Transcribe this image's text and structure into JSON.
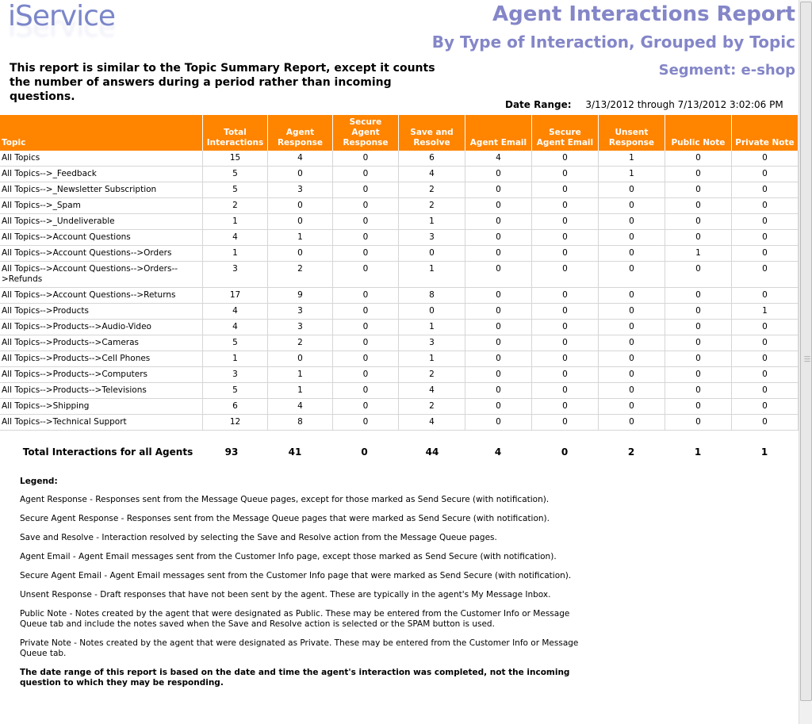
{
  "logo": {
    "text": "iService"
  },
  "header": {
    "title": "Agent Interactions Report",
    "subtitle": "By Type of Interaction, Grouped by Topic",
    "segment": "Segment: e-shop",
    "description": "This report is similar to the Topic Summary Report, except it counts the number of answers during a period rather than incoming questions."
  },
  "date_range": {
    "label": "Date Range:",
    "value": "3/13/2012 through 7/13/2012 3:02:06 PM"
  },
  "table": {
    "columns": [
      "Topic",
      "Total Interactions",
      "Agent Response",
      "Secure Agent Response",
      "Save and Resolve",
      "Agent Email",
      "Secure Agent Email",
      "Unsent Response",
      "Public Note",
      "Private Note"
    ],
    "rows": [
      [
        "All Topics",
        "15",
        "4",
        "0",
        "6",
        "4",
        "0",
        "1",
        "0",
        "0"
      ],
      [
        "All Topics-->_Feedback",
        "5",
        "0",
        "0",
        "4",
        "0",
        "0",
        "1",
        "0",
        "0"
      ],
      [
        "All Topics-->_Newsletter Subscription",
        "5",
        "3",
        "0",
        "2",
        "0",
        "0",
        "0",
        "0",
        "0"
      ],
      [
        "All Topics-->_Spam",
        "2",
        "0",
        "0",
        "2",
        "0",
        "0",
        "0",
        "0",
        "0"
      ],
      [
        "All Topics-->_Undeliverable",
        "1",
        "0",
        "0",
        "1",
        "0",
        "0",
        "0",
        "0",
        "0"
      ],
      [
        "All Topics-->Account Questions",
        "4",
        "1",
        "0",
        "3",
        "0",
        "0",
        "0",
        "0",
        "0"
      ],
      [
        "All Topics-->Account Questions-->Orders",
        "1",
        "0",
        "0",
        "0",
        "0",
        "0",
        "0",
        "1",
        "0"
      ],
      [
        "All Topics-->Account Questions-->Orders-->Refunds",
        "3",
        "2",
        "0",
        "1",
        "0",
        "0",
        "0",
        "0",
        "0"
      ],
      [
        "All Topics-->Account Questions-->Returns",
        "17",
        "9",
        "0",
        "8",
        "0",
        "0",
        "0",
        "0",
        "0"
      ],
      [
        "All Topics-->Products",
        "4",
        "3",
        "0",
        "0",
        "0",
        "0",
        "0",
        "0",
        "1"
      ],
      [
        "All Topics-->Products-->Audio-Video",
        "4",
        "3",
        "0",
        "1",
        "0",
        "0",
        "0",
        "0",
        "0"
      ],
      [
        "All Topics-->Products-->Cameras",
        "5",
        "2",
        "0",
        "3",
        "0",
        "0",
        "0",
        "0",
        "0"
      ],
      [
        "All Topics-->Products-->Cell Phones",
        "1",
        "0",
        "0",
        "1",
        "0",
        "0",
        "0",
        "0",
        "0"
      ],
      [
        "All Topics-->Products-->Computers",
        "3",
        "1",
        "0",
        "2",
        "0",
        "0",
        "0",
        "0",
        "0"
      ],
      [
        "All Topics-->Products-->Televisions",
        "5",
        "1",
        "0",
        "4",
        "0",
        "0",
        "0",
        "0",
        "0"
      ],
      [
        "All Topics-->Shipping",
        "6",
        "4",
        "0",
        "2",
        "0",
        "0",
        "0",
        "0",
        "0"
      ],
      [
        "All Topics-->Technical Support",
        "12",
        "8",
        "0",
        "4",
        "0",
        "0",
        "0",
        "0",
        "0"
      ]
    ],
    "totals": [
      "Total Interactions for all Agents",
      "93",
      "41",
      "0",
      "44",
      "4",
      "0",
      "2",
      "1",
      "1"
    ]
  },
  "legend": {
    "heading": "Legend:",
    "items": [
      "Agent Response - Responses sent from the Message Queue pages, except for those marked as Send Secure (with notification).",
      "Secure Agent Response - Responses sent from the Message Queue pages that were marked as Send Secure (with notification).",
      "Save and Resolve - Interaction resolved by selecting the Save and Resolve action from the Message Queue pages.",
      "Agent Email - Agent Email messages sent from the Customer Info page, except those marked as Send Secure (with notification).",
      "Secure Agent Email - Agent Email messages sent from the Customer Info page that were marked as Send Secure (with notification).",
      "Unsent Response - Draft responses that have not been sent by the agent. These are typically in the agent's My Message Inbox.",
      "Public Note - Notes created by the agent that were designated as Public. These may be entered from the Customer Info or Message Queue tab and include the notes saved when the Save and Resolve action is selected or the SPAM button is used.",
      "Private Note - Notes created by the agent that were designated as Private. These may be entered from the Customer Info or Message Queue tab."
    ],
    "note": "The date range of this report is based on the date and time the agent's interaction was completed, not the incoming question to which they may be responding."
  },
  "colors": {
    "header_bg": "#ff8400",
    "title": "#8486c8",
    "logo": "#7b86c9"
  }
}
